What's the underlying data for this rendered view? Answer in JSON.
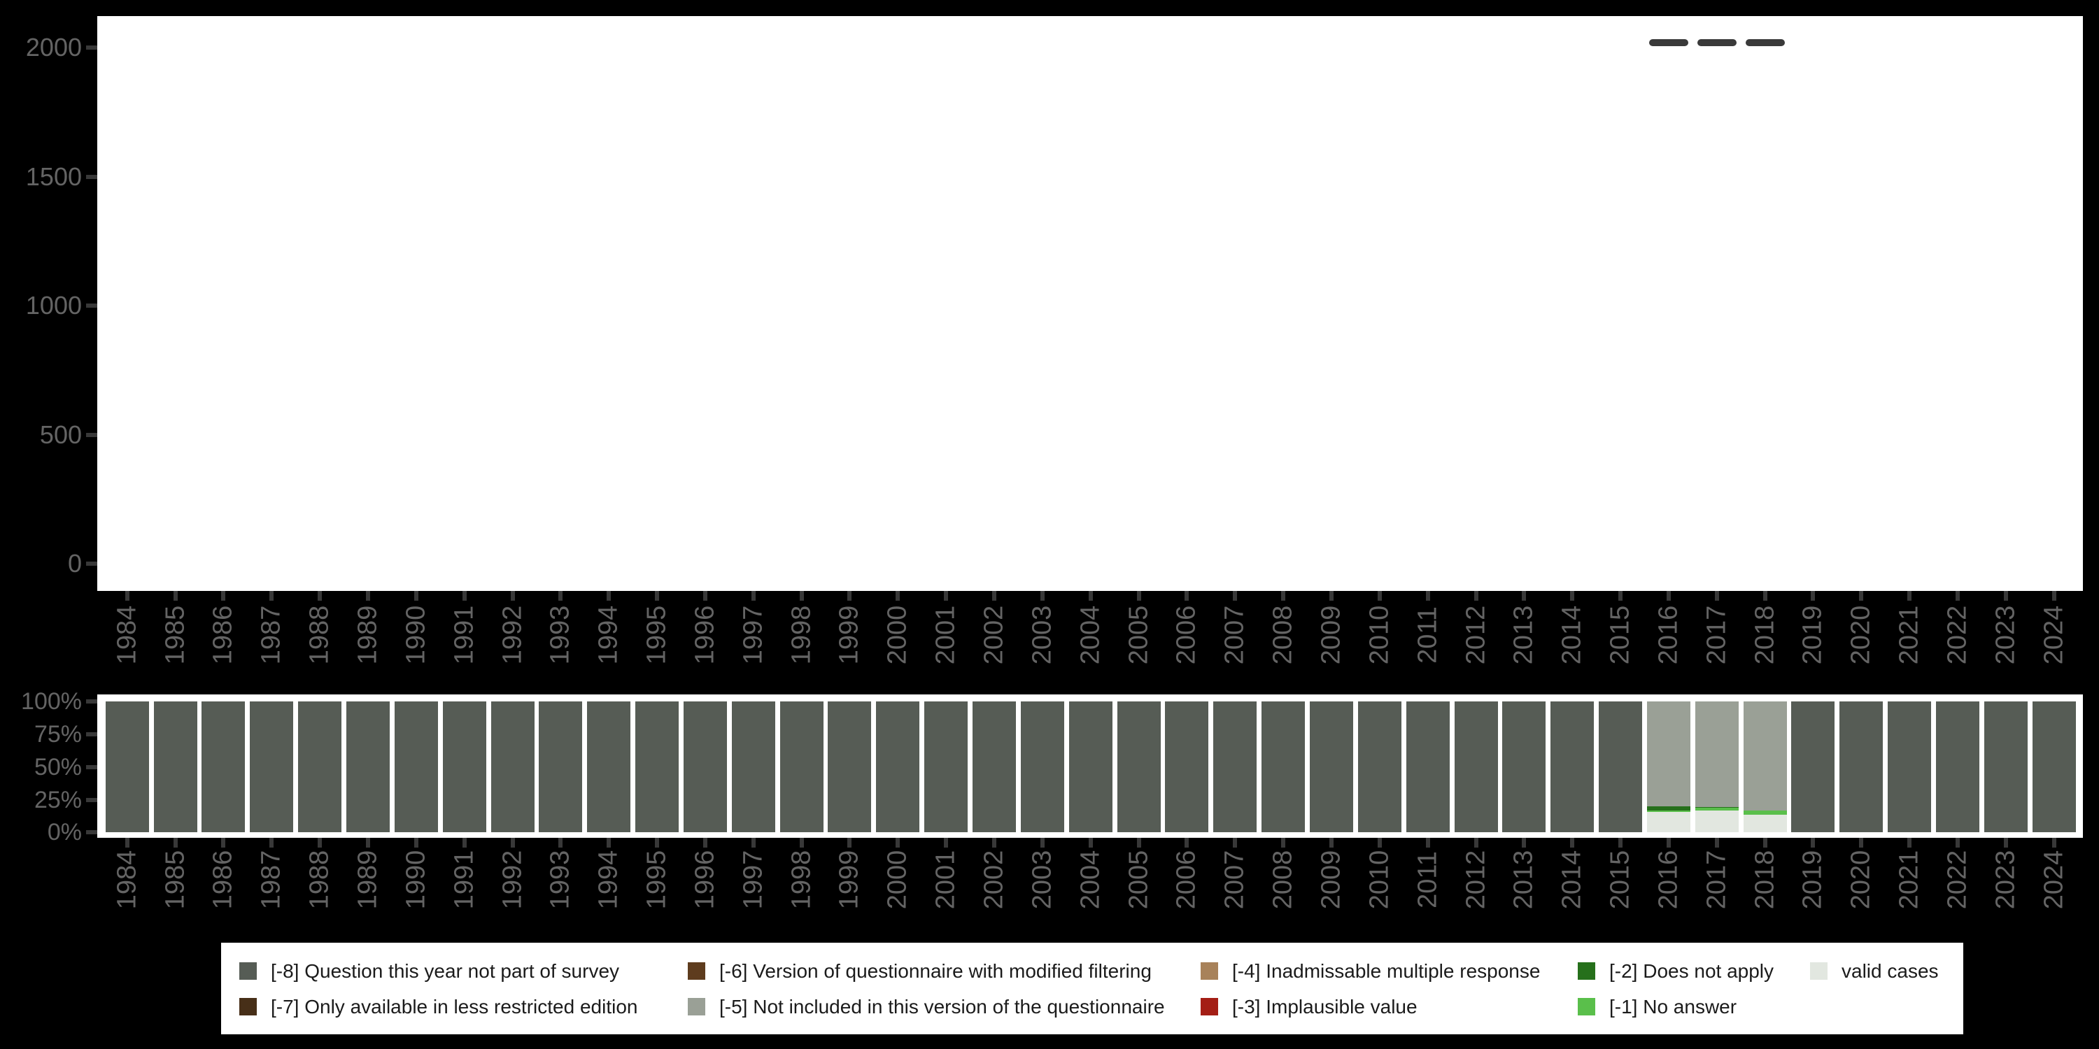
{
  "colors": {
    "background": "#000000",
    "panel": "#ffffff",
    "axis_text": "#646464",
    "tick": "#383838",
    "dash_marker": "#3a3a3a",
    "legend_text": "#1b1b1b",
    "legend_background": "#ffffff"
  },
  "chart_data": [
    {
      "type": "scatter",
      "name": "number-of-cases-by-year",
      "marker": "horizontal-dash",
      "marker_color": "#3a3a3a",
      "title": "",
      "xlabel": "",
      "ylabel": "",
      "ylim": [
        0,
        2120
      ],
      "y_ticks": [
        0,
        500,
        1000,
        1500,
        2000
      ],
      "y_tick_labels": [
        "0",
        "500",
        "1000",
        "1500",
        "2000"
      ],
      "x_tick_labels": [
        "1984",
        "1985",
        "1986",
        "1987",
        "1988",
        "1989",
        "1990",
        "1991",
        "1992",
        "1993",
        "1994",
        "1995",
        "1996",
        "1997",
        "1998",
        "1999",
        "2000",
        "2001",
        "2002",
        "2003",
        "2004",
        "2005",
        "2006",
        "2007",
        "2008",
        "2009",
        "2010",
        "2011",
        "2012",
        "2013",
        "2014",
        "2015",
        "2016",
        "2017",
        "2018",
        "2019",
        "2020",
        "2021",
        "2022",
        "2023",
        "2024"
      ],
      "x": [
        2016,
        2017,
        2018
      ],
      "values": [
        2020,
        2020,
        2020
      ],
      "grid": false
    },
    {
      "type": "bar",
      "name": "value-distribution-by-year",
      "stacked": true,
      "unit": "percent",
      "title": "",
      "xlabel": "",
      "ylabel": "",
      "ylim": [
        0,
        100
      ],
      "y_ticks": [
        0,
        25,
        50,
        75,
        100
      ],
      "y_tick_labels": [
        "0%",
        "25%",
        "50%",
        "75%",
        "100%"
      ],
      "categories": [
        1984,
        1985,
        1986,
        1987,
        1988,
        1989,
        1990,
        1991,
        1992,
        1993,
        1994,
        1995,
        1996,
        1997,
        1998,
        1999,
        2000,
        2001,
        2002,
        2003,
        2004,
        2005,
        2006,
        2007,
        2008,
        2009,
        2010,
        2011,
        2012,
        2013,
        2014,
        2015,
        2016,
        2017,
        2018,
        2019,
        2020,
        2021,
        2022,
        2023,
        2024
      ],
      "stack_order": "bottom-to-top",
      "series": [
        {
          "name": "valid cases",
          "color": "#e2e7e0",
          "values": [
            0,
            0,
            0,
            0,
            0,
            0,
            0,
            0,
            0,
            0,
            0,
            0,
            0,
            0,
            0,
            0,
            0,
            0,
            0,
            0,
            0,
            0,
            0,
            0,
            0,
            0,
            0,
            0,
            0,
            0,
            0,
            0,
            15.6,
            16.9,
            13.3,
            0,
            0,
            0,
            0,
            0,
            0
          ]
        },
        {
          "name": "[-1] No answer",
          "color": "#5abf4b",
          "values": [
            0,
            0,
            0,
            0,
            0,
            0,
            0,
            0,
            0,
            0,
            0,
            0,
            0,
            0,
            0,
            0,
            0,
            0,
            0,
            0,
            0,
            0,
            0,
            0,
            0,
            0,
            0,
            0,
            0,
            0,
            0,
            0,
            1.3,
            1.9,
            3.6,
            0,
            0,
            0,
            0,
            0,
            0
          ]
        },
        {
          "name": "[-2] Does not apply",
          "color": "#26701b",
          "values": [
            0,
            0,
            0,
            0,
            0,
            0,
            0,
            0,
            0,
            0,
            0,
            0,
            0,
            0,
            0,
            0,
            0,
            0,
            0,
            0,
            0,
            0,
            0,
            0,
            0,
            0,
            0,
            0,
            0,
            0,
            0,
            0,
            3.0,
            0.7,
            0,
            0,
            0,
            0,
            0,
            0,
            0
          ]
        },
        {
          "name": "[-5] Not included in this version of the questionnaire",
          "color": "#9aa096",
          "values": [
            0,
            0,
            0,
            0,
            0,
            0,
            0,
            0,
            0,
            0,
            0,
            0,
            0,
            0,
            0,
            0,
            0,
            0,
            0,
            0,
            0,
            0,
            0,
            0,
            0,
            0,
            0,
            0,
            0,
            0,
            0,
            0,
            80.1,
            80.5,
            83.1,
            0,
            0,
            0,
            0,
            0,
            0
          ]
        },
        {
          "name": "[-8] Question this year not part of survey",
          "color": "#565c55",
          "values": [
            100,
            100,
            100,
            100,
            100,
            100,
            100,
            100,
            100,
            100,
            100,
            100,
            100,
            100,
            100,
            100,
            100,
            100,
            100,
            100,
            100,
            100,
            100,
            100,
            100,
            100,
            100,
            100,
            100,
            100,
            100,
            100,
            0,
            0,
            0,
            100,
            100,
            100,
            100,
            100,
            100
          ]
        }
      ]
    }
  ],
  "legend": {
    "items": [
      {
        "label": "[-8] Question this year not part of survey",
        "color": "#565c55",
        "column": 0,
        "row": 0
      },
      {
        "label": "[-7] Only available in less restricted edition",
        "color": "#472f18",
        "column": 0,
        "row": 1
      },
      {
        "label": "[-6] Version of questionnaire with modified filtering",
        "color": "#5e3c1e",
        "column": 1,
        "row": 0
      },
      {
        "label": "[-5] Not included in this version of the questionnaire",
        "color": "#9aa096",
        "column": 1,
        "row": 1
      },
      {
        "label": "[-4] Inadmissable multiple response",
        "color": "#a8825a",
        "column": 2,
        "row": 0
      },
      {
        "label": "[-3] Implausible value",
        "color": "#a41e15",
        "column": 2,
        "row": 1
      },
      {
        "label": "[-2] Does not apply",
        "color": "#26701b",
        "column": 3,
        "row": 0
      },
      {
        "label": "[-1] No answer",
        "color": "#5abf4b",
        "column": 3,
        "row": 1
      },
      {
        "label": "valid cases",
        "color": "#e2e7e0",
        "column": 4,
        "row": 0
      }
    ]
  }
}
